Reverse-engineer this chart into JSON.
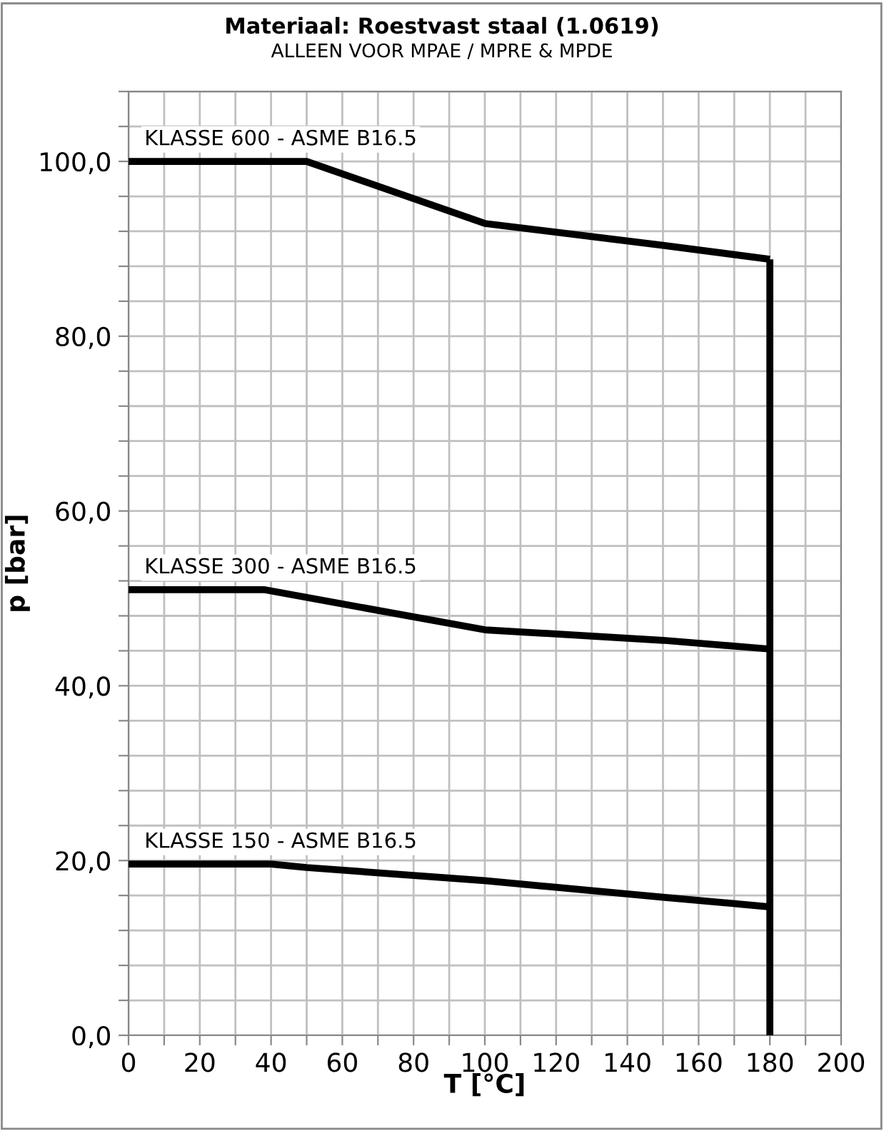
{
  "chart_data": {
    "type": "line",
    "title": "Materiaal: Roestvast staal (1.0619)",
    "subtitle": "ALLEEN VOOR MPAE / MPRE & MPDE",
    "xlabel": "T [°C]",
    "ylabel": "p [bar]",
    "series": [
      {
        "name": "KLASSE 600 - ASME B16.5",
        "color": "#000000",
        "x": [
          0,
          50,
          100,
          150,
          180
        ],
        "values": [
          100,
          100,
          92.9,
          90.4,
          88.8
        ]
      },
      {
        "name": "KLASSE 300 - ASME B16.5",
        "color": "#000000",
        "x": [
          0,
          38,
          100,
          150,
          180
        ],
        "values": [
          51.0,
          51.0,
          46.4,
          45.2,
          44.2
        ]
      },
      {
        "name": "KLASSE 150 - ASME B16.5",
        "color": "#000000",
        "x": [
          0,
          40,
          50,
          100,
          150,
          180
        ],
        "values": [
          19.6,
          19.6,
          19.2,
          17.7,
          15.8,
          14.7
        ]
      },
      {
        "color": "#000000",
        "x": [
          180,
          180
        ],
        "values": [
          0,
          88.8
        ]
      }
    ],
    "xlim": [
      0,
      200
    ],
    "ylim": [
      0,
      108
    ],
    "xticks": [
      0,
      {
        "value": 10,
        "label": null
      },
      20,
      {
        "value": 30,
        "label": null
      },
      40,
      {
        "value": 50,
        "label": null
      },
      60,
      {
        "value": 70,
        "label": null
      },
      80,
      {
        "value": 90,
        "label": null
      },
      100,
      {
        "value": 110,
        "label": null
      },
      120,
      {
        "value": 130,
        "label": null
      },
      140,
      {
        "value": 150,
        "label": null
      },
      160,
      {
        "value": 170,
        "label": null
      },
      180,
      {
        "value": 190,
        "label": null
      },
      200
    ],
    "yticks": [
      {
        "value": 0,
        "label": "0,0"
      },
      {
        "value": 4,
        "label": null
      },
      {
        "value": 8,
        "label": null
      },
      {
        "value": 12,
        "label": null
      },
      {
        "value": 16,
        "label": null
      },
      {
        "value": 20,
        "label": "20,0"
      },
      {
        "value": 24,
        "label": null
      },
      {
        "value": 28,
        "label": null
      },
      {
        "value": 32,
        "label": null
      },
      {
        "value": 36,
        "label": null
      },
      {
        "value": 40,
        "label": "40,0"
      },
      {
        "value": 44,
        "label": null
      },
      {
        "value": 48,
        "label": null
      },
      {
        "value": 52,
        "label": null
      },
      {
        "value": 56,
        "label": null
      },
      {
        "value": 60,
        "label": "60,0"
      },
      {
        "value": 64,
        "label": null
      },
      {
        "value": 68,
        "label": null
      },
      {
        "value": 72,
        "label": null
      },
      {
        "value": 76,
        "label": null
      },
      {
        "value": 80,
        "label": "80,0"
      },
      {
        "value": 84,
        "label": null
      },
      {
        "value": 88,
        "label": null
      },
      {
        "value": 92,
        "label": null
      },
      {
        "value": 96,
        "label": null
      },
      {
        "value": 100,
        "label": "100,0"
      },
      {
        "value": 104,
        "label": null
      },
      {
        "value": 108,
        "label": null
      }
    ],
    "grid": true,
    "legend": false,
    "marker": "none",
    "line_style": "solid"
  }
}
